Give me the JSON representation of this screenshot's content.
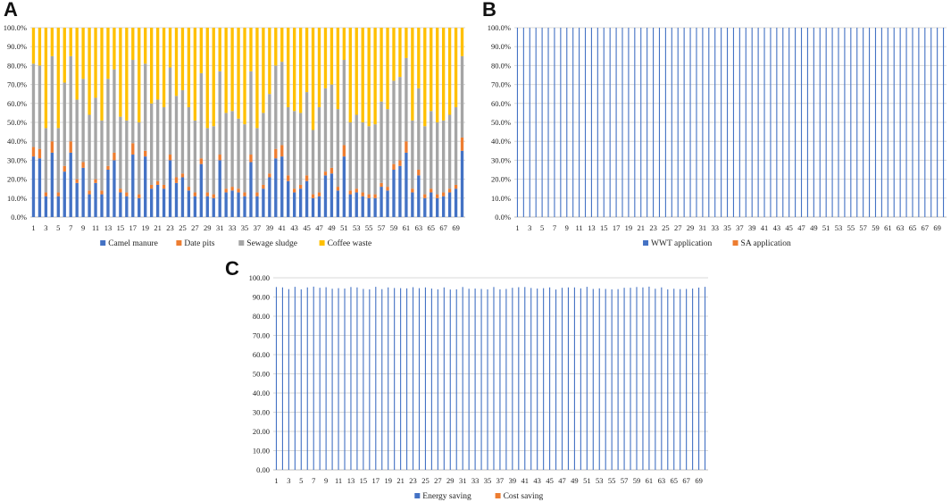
{
  "figure": {
    "colors": {
      "blue": "#4472C4",
      "orange": "#ED7D31",
      "gray": "#A5A5A5",
      "yellow": "#FFC000",
      "grid": "#D9D9D9",
      "axis": "#BFBFBF"
    }
  },
  "chart_data": [
    {
      "id": "A",
      "label": "A",
      "type": "bar",
      "stacked": "percent",
      "x": [
        1,
        2,
        3,
        4,
        5,
        6,
        7,
        8,
        9,
        10,
        11,
        12,
        13,
        14,
        15,
        16,
        17,
        18,
        19,
        20,
        21,
        22,
        23,
        24,
        25,
        26,
        27,
        28,
        29,
        30,
        31,
        32,
        33,
        34,
        35,
        36,
        37,
        38,
        39,
        40,
        41,
        42,
        43,
        44,
        45,
        46,
        47,
        48,
        49,
        50,
        51,
        52,
        53,
        54,
        55,
        56,
        57,
        58,
        59,
        60,
        61,
        62,
        63,
        64,
        65,
        66,
        67,
        68,
        69,
        70
      ],
      "xtick_labels": [
        "1",
        "3",
        "5",
        "7",
        "9",
        "11",
        "13",
        "15",
        "17",
        "19",
        "21",
        "23",
        "25",
        "27",
        "29",
        "31",
        "33",
        "35",
        "37",
        "39",
        "41",
        "43",
        "45",
        "47",
        "49",
        "51",
        "53",
        "55",
        "57",
        "59",
        "61",
        "63",
        "65",
        "67",
        "69"
      ],
      "yticks": [
        "0.0%",
        "10.0%",
        "20.0%",
        "30.0%",
        "40.0%",
        "50.0%",
        "60.0%",
        "70.0%",
        "80.0%",
        "90.0%",
        "100.0%"
      ],
      "ylim": [
        0,
        100
      ],
      "series": [
        {
          "name": "Camel manure",
          "color": "#4472C4",
          "values": [
            32,
            31,
            11,
            34,
            11,
            24,
            34,
            18,
            26,
            12,
            18,
            12,
            25,
            30,
            13,
            11,
            33,
            10,
            32,
            15,
            17,
            15,
            30,
            18,
            21,
            14,
            11,
            28,
            11,
            10,
            30,
            13,
            14,
            13,
            11,
            29,
            11,
            15,
            21,
            31,
            32,
            19,
            13,
            15,
            19,
            10,
            11,
            22,
            23,
            14,
            32,
            12,
            13,
            11,
            10,
            10,
            16,
            14,
            25,
            27,
            34,
            13,
            22,
            10,
            13,
            10,
            11,
            13,
            15,
            35
          ]
        },
        {
          "name": "Date pits",
          "color": "#ED7D31",
          "values": [
            5,
            5,
            2,
            6,
            2,
            3,
            6,
            2,
            3,
            2,
            2,
            2,
            2,
            4,
            2,
            2,
            6,
            2,
            3,
            2,
            2,
            2,
            3,
            3,
            2,
            2,
            2,
            3,
            2,
            2,
            3,
            2,
            2,
            2,
            2,
            4,
            2,
            2,
            2,
            5,
            6,
            3,
            2,
            2,
            3,
            2,
            2,
            2,
            3,
            2,
            6,
            2,
            2,
            2,
            2,
            2,
            2,
            2,
            3,
            3,
            6,
            2,
            3,
            2,
            2,
            2,
            2,
            2,
            2,
            7
          ]
        },
        {
          "name": "Sewage sludge",
          "color": "#A5A5A5",
          "values": [
            44,
            44,
            34,
            45,
            34,
            44,
            45,
            42,
            44,
            40,
            43,
            37,
            46,
            44,
            38,
            38,
            44,
            38,
            46,
            43,
            43,
            41,
            46,
            43,
            44,
            42,
            38,
            45,
            34,
            36,
            44,
            40,
            40,
            37,
            36,
            44,
            34,
            38,
            42,
            44,
            44,
            36,
            41,
            38,
            44,
            34,
            45,
            44,
            44,
            41,
            45,
            36,
            39,
            37,
            36,
            37,
            43,
            41,
            44,
            44,
            44,
            36,
            43,
            36,
            41,
            38,
            38,
            39,
            41,
            43
          ]
        },
        {
          "name": "Coffee waste",
          "color": "#FFC000",
          "values": [
            19,
            20,
            53,
            15,
            53,
            29,
            15,
            38,
            27,
            46,
            37,
            49,
            27,
            22,
            47,
            49,
            17,
            50,
            19,
            40,
            38,
            42,
            21,
            36,
            33,
            42,
            49,
            24,
            53,
            52,
            23,
            45,
            44,
            48,
            51,
            23,
            53,
            45,
            35,
            20,
            18,
            42,
            44,
            45,
            34,
            54,
            42,
            32,
            30,
            43,
            17,
            50,
            46,
            50,
            52,
            51,
            39,
            43,
            28,
            26,
            16,
            49,
            32,
            52,
            44,
            50,
            49,
            46,
            42,
            15
          ]
        }
      ],
      "legend": [
        "Camel manure",
        "Date pits",
        "Sewage sludge",
        "Coffee waste"
      ],
      "legend_position": "bottom"
    },
    {
      "id": "B",
      "label": "B",
      "type": "bar",
      "stacked": "percent",
      "x": [
        1,
        2,
        3,
        4,
        5,
        6,
        7,
        8,
        9,
        10,
        11,
        12,
        13,
        14,
        15,
        16,
        17,
        18,
        19,
        20,
        21,
        22,
        23,
        24,
        25,
        26,
        27,
        28,
        29,
        30,
        31,
        32,
        33,
        34,
        35,
        36,
        37,
        38,
        39,
        40,
        41,
        42,
        43,
        44,
        45,
        46,
        47,
        48,
        49,
        50,
        51,
        52,
        53,
        54,
        55,
        56,
        57,
        58,
        59,
        60,
        61,
        62,
        63,
        64,
        65,
        66,
        67,
        68,
        69,
        70
      ],
      "xtick_labels": [
        "1",
        "3",
        "5",
        "7",
        "9",
        "11",
        "13",
        "15",
        "17",
        "19",
        "21",
        "23",
        "25",
        "27",
        "29",
        "31",
        "33",
        "35",
        "37",
        "39",
        "41",
        "43",
        "45",
        "47",
        "49",
        "51",
        "53",
        "55",
        "57",
        "59",
        "61",
        "63",
        "65",
        "67",
        "69"
      ],
      "yticks": [
        "0.0%",
        "10.0%",
        "20.0%",
        "30.0%",
        "40.0%",
        "50.0%",
        "60.0%",
        "70.0%",
        "80.0%",
        "90.0%",
        "100.0%"
      ],
      "ylim": [
        0,
        100
      ],
      "series": [
        {
          "name": "WWT application",
          "color": "#4472C4",
          "values": [
            100,
            100,
            100,
            100,
            100,
            100,
            100,
            100,
            100,
            100,
            100,
            100,
            100,
            100,
            100,
            100,
            100,
            100,
            100,
            100,
            100,
            100,
            100,
            100,
            100,
            100,
            100,
            100,
            100,
            100,
            100,
            100,
            100,
            100,
            100,
            100,
            100,
            100,
            100,
            100,
            100,
            100,
            100,
            100,
            100,
            100,
            100,
            100,
            100,
            100,
            100,
            100,
            100,
            100,
            100,
            100,
            100,
            100,
            100,
            100,
            100,
            100,
            100,
            100,
            100,
            100,
            100,
            100,
            100,
            100
          ]
        },
        {
          "name": "SA application",
          "color": "#ED7D31",
          "values": [
            0,
            0,
            0,
            0,
            0,
            0,
            0,
            0,
            0,
            0,
            0,
            0,
            0,
            0,
            0,
            0,
            0,
            0,
            0,
            0,
            0,
            0,
            0,
            0,
            0,
            0,
            0,
            0,
            0,
            0,
            0,
            0,
            0,
            0,
            0,
            0,
            0,
            0,
            0,
            0,
            0,
            0,
            0,
            0,
            0,
            0,
            0,
            0,
            0,
            0,
            0,
            0,
            0,
            0,
            0,
            0,
            0,
            0,
            0,
            0,
            0,
            0,
            0,
            0,
            0,
            0,
            0,
            0,
            0,
            0
          ]
        }
      ],
      "legend": [
        "WWT application",
        "SA application"
      ],
      "legend_position": "bottom"
    },
    {
      "id": "C",
      "label": "C",
      "type": "bar",
      "stacked": "none",
      "x": [
        1,
        2,
        3,
        4,
        5,
        6,
        7,
        8,
        9,
        10,
        11,
        12,
        13,
        14,
        15,
        16,
        17,
        18,
        19,
        20,
        21,
        22,
        23,
        24,
        25,
        26,
        27,
        28,
        29,
        30,
        31,
        32,
        33,
        34,
        35,
        36,
        37,
        38,
        39,
        40,
        41,
        42,
        43,
        44,
        45,
        46,
        47,
        48,
        49,
        50,
        51,
        52,
        53,
        54,
        55,
        56,
        57,
        58,
        59,
        60,
        61,
        62,
        63,
        64,
        65,
        66,
        67,
        68,
        69,
        70
      ],
      "xtick_labels": [
        "1",
        "3",
        "5",
        "7",
        "9",
        "11",
        "13",
        "15",
        "17",
        "19",
        "21",
        "23",
        "25",
        "27",
        "29",
        "31",
        "33",
        "35",
        "37",
        "39",
        "41",
        "43",
        "45",
        "47",
        "49",
        "51",
        "53",
        "55",
        "57",
        "59",
        "61",
        "63",
        "65",
        "67",
        "69"
      ],
      "yticks": [
        "0.00",
        "10.00",
        "20.00",
        "30.00",
        "40.00",
        "50.00",
        "60.00",
        "70.00",
        "80.00",
        "90.00",
        "100.00"
      ],
      "ylim": [
        0,
        100
      ],
      "series": [
        {
          "name": "Energy saving",
          "color": "#4472C4",
          "values": [
            95.2,
            95.0,
            94.1,
            95.3,
            94.0,
            95.0,
            95.4,
            94.8,
            95.1,
            94.3,
            94.6,
            94.4,
            95.2,
            95.0,
            94.2,
            94.0,
            95.3,
            94.1,
            95.0,
            94.7,
            94.6,
            94.5,
            95.1,
            94.6,
            95.0,
            94.4,
            94.0,
            95.0,
            93.9,
            94.0,
            95.2,
            94.3,
            94.4,
            94.2,
            94.0,
            95.2,
            94.0,
            94.2,
            94.8,
            95.1,
            95.2,
            94.7,
            94.4,
            94.6,
            95.0,
            93.9,
            94.8,
            95.0,
            95.0,
            94.5,
            95.3,
            94.2,
            94.5,
            94.2,
            94.0,
            94.1,
            94.8,
            94.8,
            95.2,
            95.0,
            95.4,
            94.3,
            95.0,
            94.0,
            94.3,
            94.1,
            94.2,
            94.4,
            94.9,
            95.3
          ]
        },
        {
          "name": "Cost saving",
          "color": "#ED7D31",
          "values": [
            0,
            0,
            0,
            0,
            0,
            0,
            0,
            0,
            0,
            0,
            0,
            0,
            0,
            0,
            0,
            0,
            0,
            0,
            0,
            0,
            0,
            0,
            0,
            0,
            0,
            0,
            0,
            0,
            0,
            0,
            0,
            0,
            0,
            0,
            0,
            0,
            0,
            0,
            0,
            0,
            0,
            0,
            0,
            0,
            0,
            0,
            0,
            0,
            0,
            0,
            0,
            0,
            0,
            0,
            0,
            0,
            0,
            0,
            0,
            0,
            0,
            0,
            0,
            0,
            0,
            0,
            0,
            0,
            0,
            0
          ]
        }
      ],
      "legend": [
        "Energy saving",
        "Cost saving"
      ],
      "legend_position": "bottom"
    }
  ]
}
